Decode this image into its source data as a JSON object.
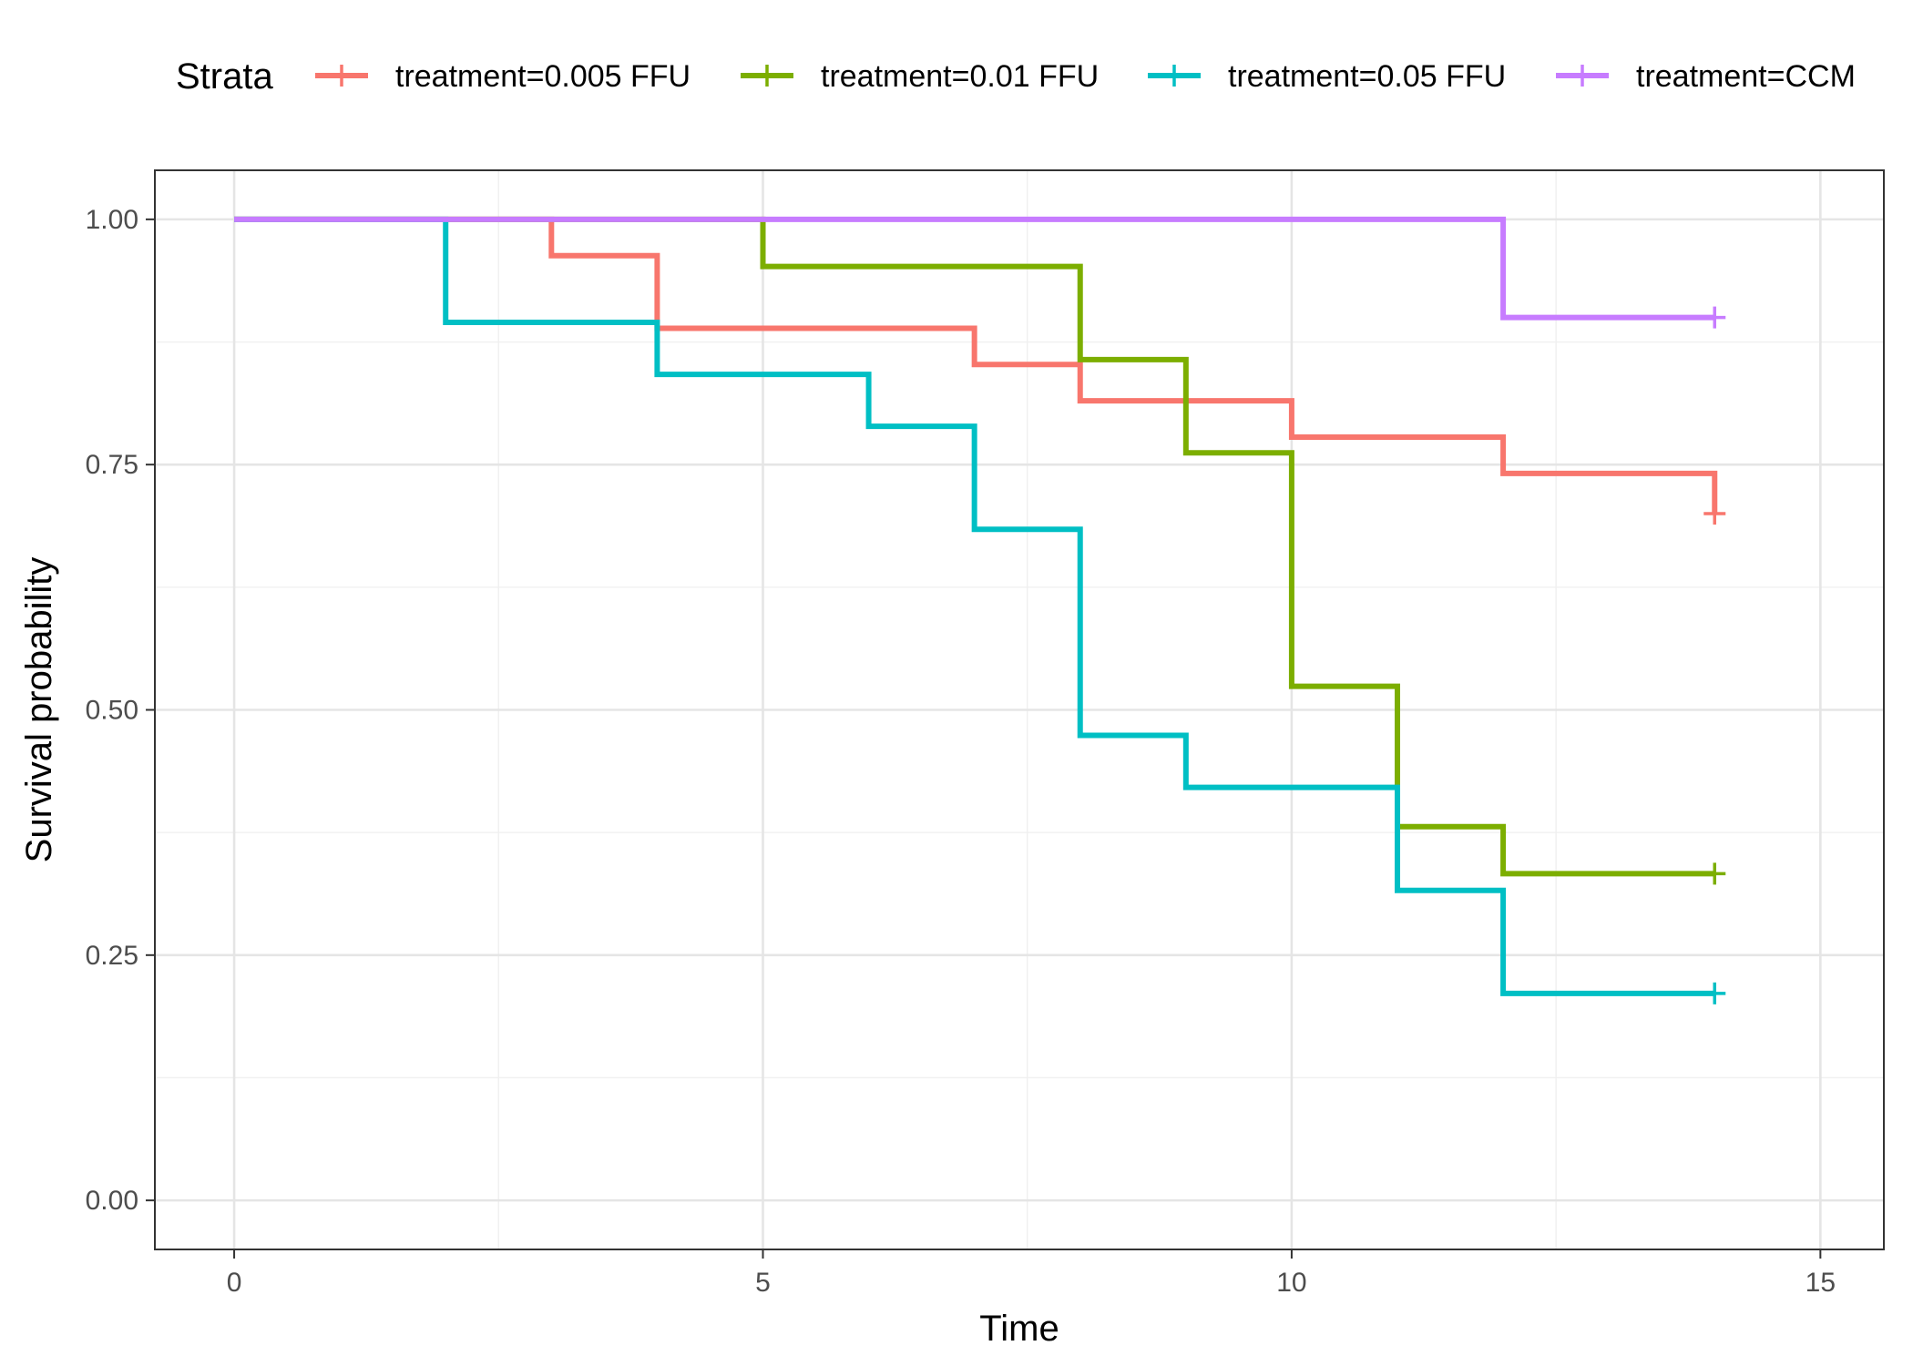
{
  "chart_data": {
    "type": "line",
    "subtype": "kaplan-meier step",
    "xlabel": "Time",
    "ylabel": "Survival probability",
    "xlim": [
      -0.75,
      15.6
    ],
    "ylim": [
      -0.05,
      1.05
    ],
    "x_ticks": [
      0,
      5,
      10,
      15
    ],
    "y_ticks": [
      0.0,
      0.25,
      0.5,
      0.75,
      1.0
    ],
    "x_tick_labels": [
      "0",
      "5",
      "10",
      "15"
    ],
    "y_tick_labels": [
      "0.00",
      "0.25",
      "0.50",
      "0.75",
      "1.00"
    ],
    "grid": true,
    "legend": {
      "title": "Strata",
      "position": "top"
    },
    "series": [
      {
        "name": "treatment=0.005 FFU",
        "color": "#F8766D",
        "steps": [
          [
            0,
            1.0
          ],
          [
            3,
            0.963
          ],
          [
            4,
            0.889
          ],
          [
            7,
            0.852
          ],
          [
            8,
            0.815
          ],
          [
            10,
            0.778
          ],
          [
            12,
            0.741
          ],
          [
            14,
            0.7
          ]
        ],
        "censor": [
          [
            14,
            0.7
          ]
        ]
      },
      {
        "name": "treatment=0.01 FFU",
        "color": "#7CAE00",
        "steps": [
          [
            0,
            1.0
          ],
          [
            5,
            0.952
          ],
          [
            8,
            0.857
          ],
          [
            9,
            0.762
          ],
          [
            10,
            0.524
          ],
          [
            11,
            0.381
          ],
          [
            12,
            0.333
          ]
        ],
        "end": 14,
        "censor": [
          [
            14,
            0.333
          ]
        ]
      },
      {
        "name": "treatment=0.05 FFU",
        "color": "#00BFC4",
        "steps": [
          [
            0,
            1.0
          ],
          [
            2,
            0.895
          ],
          [
            4,
            0.842
          ],
          [
            6,
            0.789
          ],
          [
            7,
            0.684
          ],
          [
            8,
            0.474
          ],
          [
            9,
            0.421
          ],
          [
            11,
            0.316
          ],
          [
            12,
            0.211
          ]
        ],
        "end": 14,
        "censor": [
          [
            14,
            0.211
          ]
        ]
      },
      {
        "name": "treatment=CCM",
        "color": "#C77CFF",
        "steps": [
          [
            0,
            1.0
          ],
          [
            12,
            0.9
          ]
        ],
        "end": 14,
        "censor": [
          [
            14,
            0.9
          ]
        ]
      }
    ]
  }
}
